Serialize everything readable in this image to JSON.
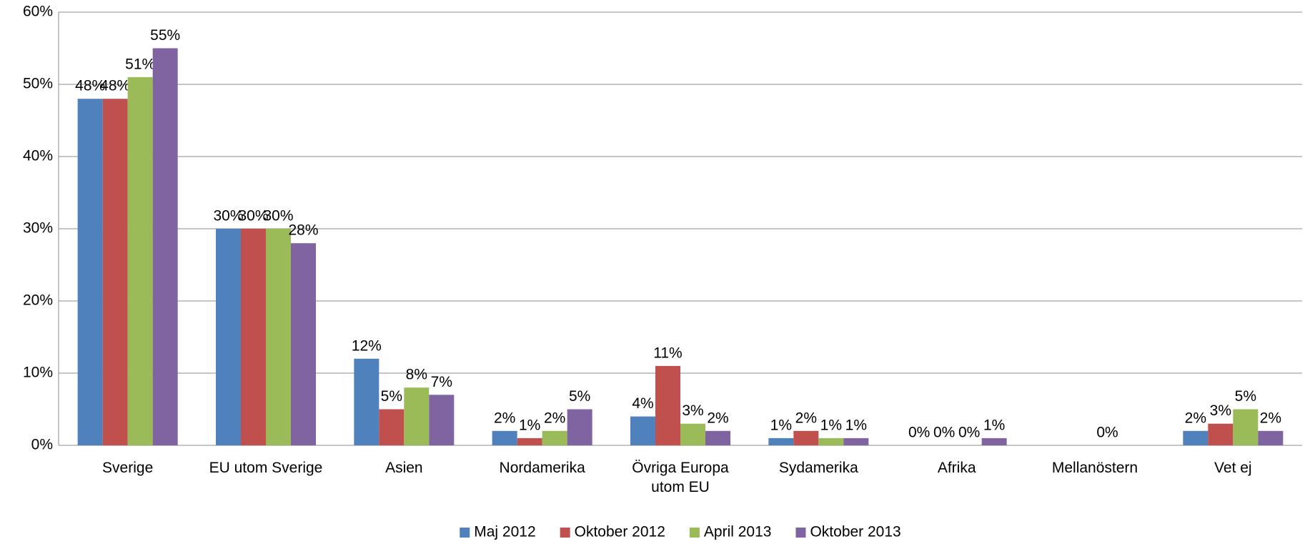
{
  "chart_data": {
    "type": "bar",
    "categories": [
      "Sverige",
      "EU utom Sverige",
      "Asien",
      "Nordamerika",
      "Övriga Europa utom EU",
      "Sydamerika",
      "Afrika",
      "Mellanöstern",
      "Vet ej"
    ],
    "series": [
      {
        "name": "Maj 2012",
        "color": "#4f81bd",
        "values": [
          48,
          30,
          12,
          2,
          4,
          1,
          0,
          null,
          2
        ],
        "value_labels": [
          "48%",
          "30%",
          "12%",
          "2%",
          "4%",
          "1%",
          "0%",
          null,
          "2%"
        ]
      },
      {
        "name": "Oktober 2012",
        "color": "#c0504d",
        "values": [
          48,
          30,
          5,
          1,
          11,
          2,
          0,
          null,
          3
        ],
        "value_labels": [
          "48%",
          "30%",
          "5%",
          "1%",
          "11%",
          "2%",
          "0%",
          null,
          "3%"
        ]
      },
      {
        "name": "April 2013",
        "color": "#9bbb59",
        "values": [
          51,
          30,
          8,
          2,
          3,
          1,
          0,
          0,
          5
        ],
        "value_labels": [
          "51%",
          "30%",
          "8%",
          "2%",
          "3%",
          "1%",
          "0%",
          "0%",
          "5%"
        ]
      },
      {
        "name": "Oktober 2013",
        "color": "#8064a2",
        "values": [
          55,
          28,
          7,
          5,
          2,
          1,
          1,
          null,
          2
        ],
        "value_labels": [
          "55%",
          "28%",
          "7%",
          "5%",
          "2%",
          "1%",
          "1%",
          null,
          "2%"
        ]
      }
    ],
    "ylim": [
      0,
      60
    ],
    "yticks": [
      {
        "value": 0,
        "label": "0%"
      },
      {
        "value": 10,
        "label": "10%"
      },
      {
        "value": 20,
        "label": "20%"
      },
      {
        "value": 30,
        "label": "30%"
      },
      {
        "value": 40,
        "label": "40%"
      },
      {
        "value": 50,
        "label": "50%"
      },
      {
        "value": 60,
        "label": "60%"
      }
    ],
    "grid": true,
    "legend": "bottom"
  }
}
